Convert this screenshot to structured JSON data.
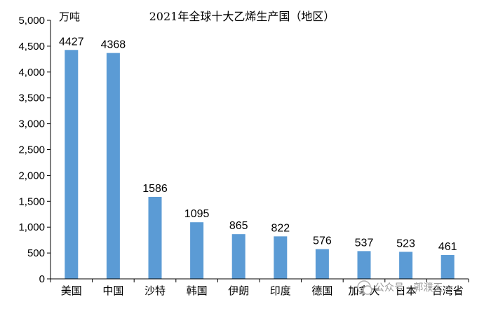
{
  "chart_data": {
    "type": "bar",
    "title": "2021年全球十大乙烯生产国（地区）",
    "unit_label": "万吨",
    "categories": [
      "美国",
      "中国",
      "沙特",
      "韩国",
      "伊朗",
      "印度",
      "德国",
      "加拿大",
      "日本",
      "台湾省"
    ],
    "values": [
      4427,
      4368,
      1586,
      1095,
      865,
      822,
      576,
      537,
      523,
      461
    ],
    "data_labels": [
      "4427",
      "4368",
      "1586",
      "1095",
      "865",
      "822",
      "576",
      "537",
      "523",
      "461"
    ],
    "ylim": [
      0,
      5000
    ],
    "yticks": [
      0,
      500,
      1000,
      1500,
      2000,
      2500,
      3000,
      3500,
      4000,
      4500,
      5000
    ],
    "ytick_labels": [
      "0",
      "500",
      "1,000",
      "1,500",
      "2,000",
      "2,500",
      "3,000",
      "3,500",
      "4,000",
      "4,500",
      "5,000"
    ],
    "bar_color": "#5b9bd5",
    "grid": false,
    "legend": "none"
  },
  "watermark": "公众号 · 郭濮天"
}
